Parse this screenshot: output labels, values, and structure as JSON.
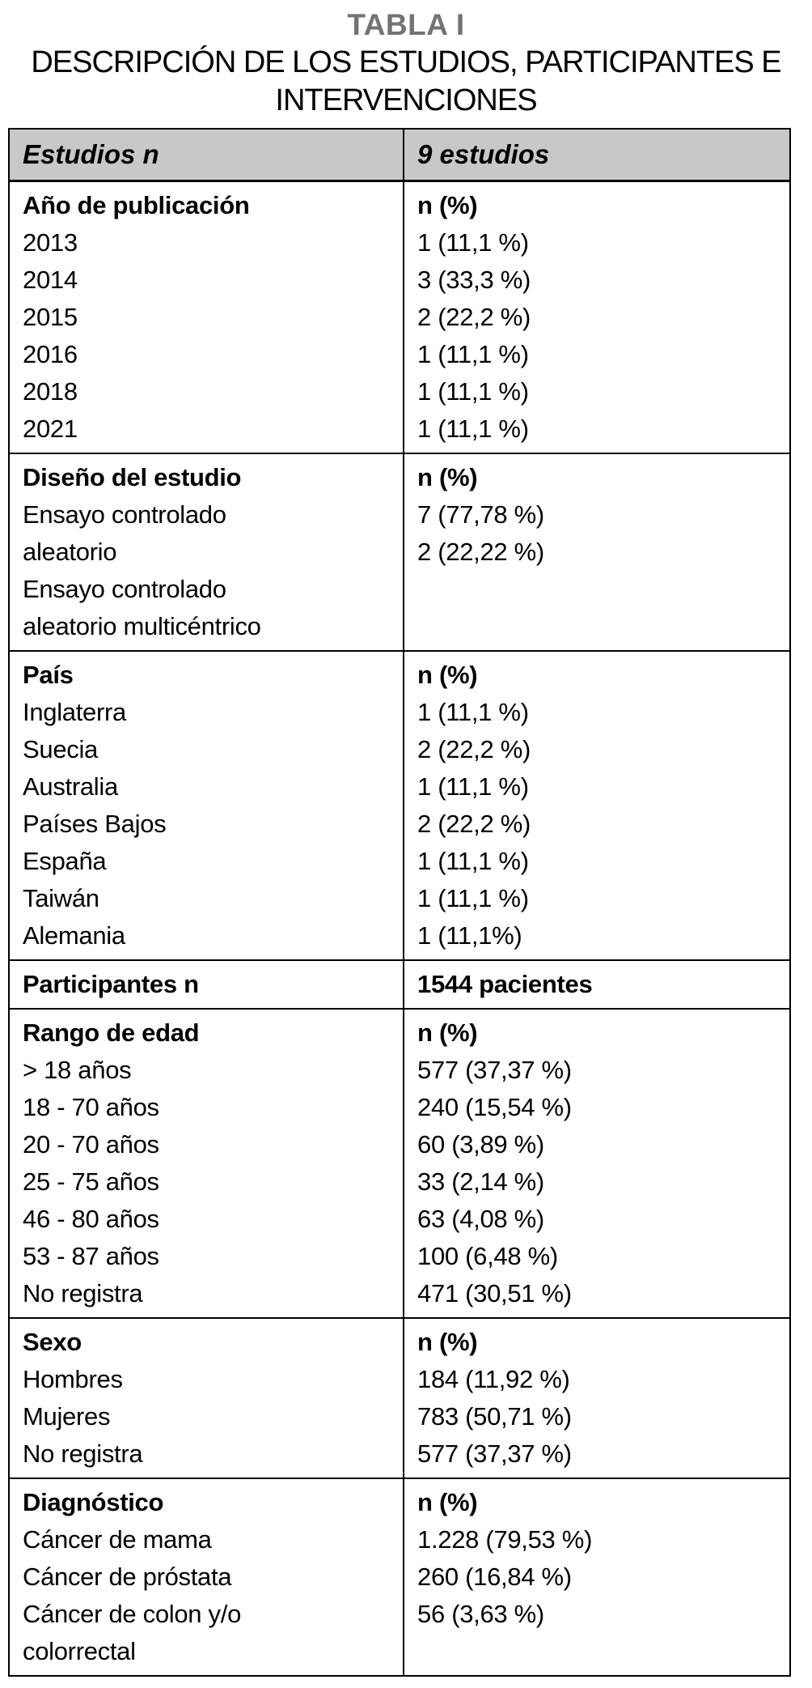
{
  "colors": {
    "title_gray": "#737373",
    "header_bg": "#c8c8c8",
    "border": "#000000",
    "text": "#000000"
  },
  "title": {
    "tag": "TABLA I",
    "subtitle": "DESCRIPCIÓN DE LOS ESTUDIOS, PARTICIPANTES E INTERVENCIONES"
  },
  "table": {
    "header": {
      "col1": "Estudios n",
      "col2": "9 estudios"
    },
    "sections": [
      {
        "id": "ano-de-publicacion",
        "left": [
          {
            "text": "Año de publicación",
            "bold": true
          },
          {
            "text": "2013"
          },
          {
            "text": "2014"
          },
          {
            "text": "2015"
          },
          {
            "text": "2016"
          },
          {
            "text": "2018"
          },
          {
            "text": "2021"
          }
        ],
        "right": [
          {
            "text": "n (%)",
            "bold": true
          },
          {
            "text": "1 (11,1 %)"
          },
          {
            "text": "3 (33,3 %)"
          },
          {
            "text": "2 (22,2 %)"
          },
          {
            "text": "1 (11,1 %)"
          },
          {
            "text": "1 (11,1 %)"
          },
          {
            "text": "1 (11,1 %)"
          }
        ]
      },
      {
        "id": "diseno-del-estudio",
        "left": [
          {
            "text": "Diseño del estudio",
            "bold": true
          },
          {
            "text": "Ensayo controlado"
          },
          {
            "text": "aleatorio"
          },
          {
            "text": "Ensayo controlado"
          },
          {
            "text": "aleatorio multicéntrico"
          }
        ],
        "right": [
          {
            "text": "n (%)",
            "bold": true
          },
          {
            "text": "7 (77,78 %)"
          },
          {
            "text": "2 (22,22 %)"
          }
        ]
      },
      {
        "id": "pais",
        "left": [
          {
            "text": "País",
            "bold": true
          },
          {
            "text": "Inglaterra"
          },
          {
            "text": "Suecia"
          },
          {
            "text": "Australia"
          },
          {
            "text": "Países Bajos"
          },
          {
            "text": "España"
          },
          {
            "text": "Taiwán"
          },
          {
            "text": "Alemania"
          }
        ],
        "right": [
          {
            "text": "n (%)",
            "bold": true
          },
          {
            "text": "1 (11,1 %)"
          },
          {
            "text": "2 (22,2 %)"
          },
          {
            "text": "1 (11,1 %)"
          },
          {
            "text": "2 (22,2 %)"
          },
          {
            "text": "1 (11,1 %)"
          },
          {
            "text": "1 (11,1 %)"
          },
          {
            "text": "1 (11,1%)"
          }
        ]
      },
      {
        "id": "participantes",
        "left": [
          {
            "text": "Participantes n",
            "bold": true
          }
        ],
        "right": [
          {
            "text": "1544 pacientes",
            "bold": true
          }
        ]
      },
      {
        "id": "rango-de-edad",
        "left": [
          {
            "text": "Rango de edad",
            "bold": true
          },
          {
            "text": "> 18 años"
          },
          {
            "text": "18 - 70 años"
          },
          {
            "text": "20 - 70 años"
          },
          {
            "text": "25 - 75 años"
          },
          {
            "text": "46 - 80 años"
          },
          {
            "text": "53 - 87 años"
          },
          {
            "text": "No registra"
          }
        ],
        "right": [
          {
            "text": "n (%)",
            "bold": true
          },
          {
            "text": "577 (37,37 %)"
          },
          {
            "text": "240 (15,54 %)"
          },
          {
            "text": "60 (3,89 %)"
          },
          {
            "text": "33 (2,14 %)"
          },
          {
            "text": "63 (4,08 %)"
          },
          {
            "text": "100 (6,48 %)"
          },
          {
            "text": "471 (30,51 %)"
          }
        ]
      },
      {
        "id": "sexo",
        "left": [
          {
            "text": "Sexo",
            "bold": true
          },
          {
            "text": "Hombres"
          },
          {
            "text": "Mujeres"
          },
          {
            "text": "No registra"
          }
        ],
        "right": [
          {
            "text": "n (%)",
            "bold": true
          },
          {
            "text": "184 (11,92 %)"
          },
          {
            "text": "783 (50,71 %)"
          },
          {
            "text": "577 (37,37 %)"
          }
        ]
      },
      {
        "id": "diagnostico",
        "left": [
          {
            "text": "Diagnóstico",
            "bold": true
          },
          {
            "text": "Cáncer de mama"
          },
          {
            "text": "Cáncer de próstata"
          },
          {
            "text": "Cáncer de colon y/o"
          },
          {
            "text": "colorrectal"
          }
        ],
        "right": [
          {
            "text": "n (%)",
            "bold": true
          },
          {
            "text": "1.228 (79,53 %)"
          },
          {
            "text": "260 (16,84 %)"
          },
          {
            "text": "56 (3,63 %)"
          }
        ]
      }
    ]
  }
}
